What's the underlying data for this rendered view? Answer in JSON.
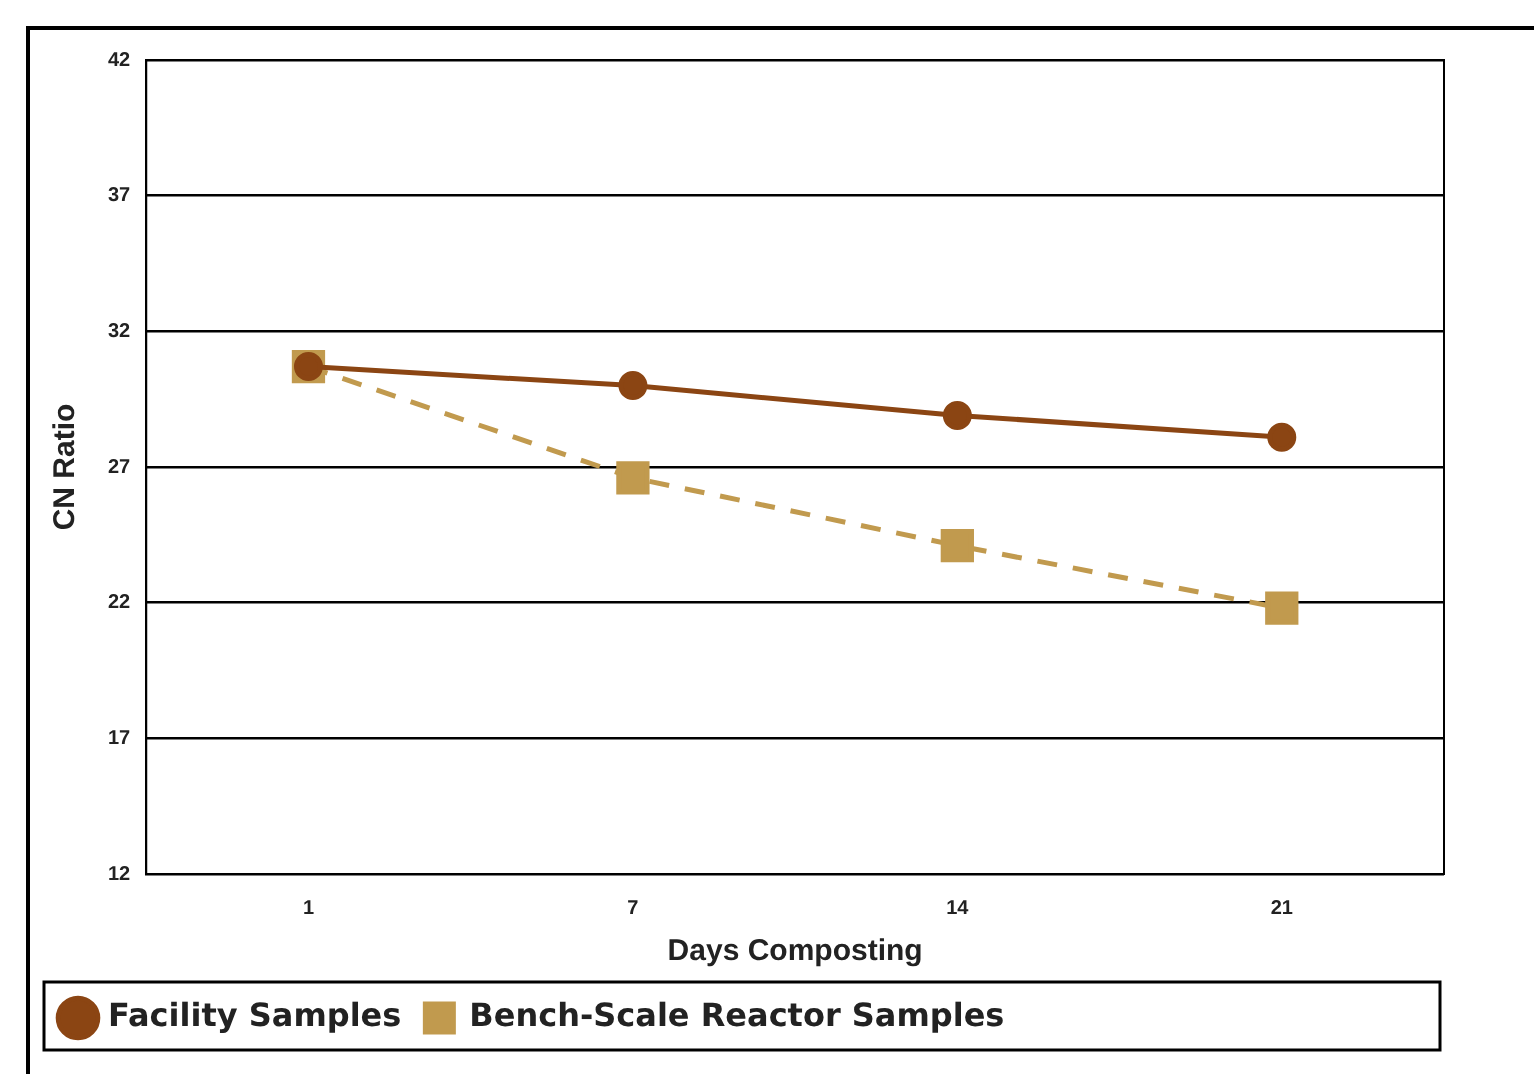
{
  "chart_data": {
    "type": "line",
    "xlabel": "Days Composting",
    "ylabel": "CN Ratio",
    "categories": [
      "1",
      "7",
      "14",
      "21"
    ],
    "series": [
      {
        "name": "Facility Samples",
        "color": "#8b4513",
        "values": [
          30.7,
          30.0,
          28.9,
          28.1
        ],
        "marker": "circle",
        "line_style": "solid"
      },
      {
        "name": "Bench-Scale Reactor Samples",
        "color": "#c19a4e",
        "values": [
          30.7,
          26.6,
          24.1,
          21.8
        ],
        "marker": "square",
        "line_style": "dashed"
      }
    ],
    "ylim": [
      12,
      42
    ],
    "yticks": [
      12,
      17,
      22,
      27,
      32,
      37,
      42
    ],
    "grid": "y",
    "legend": "bottom left"
  }
}
